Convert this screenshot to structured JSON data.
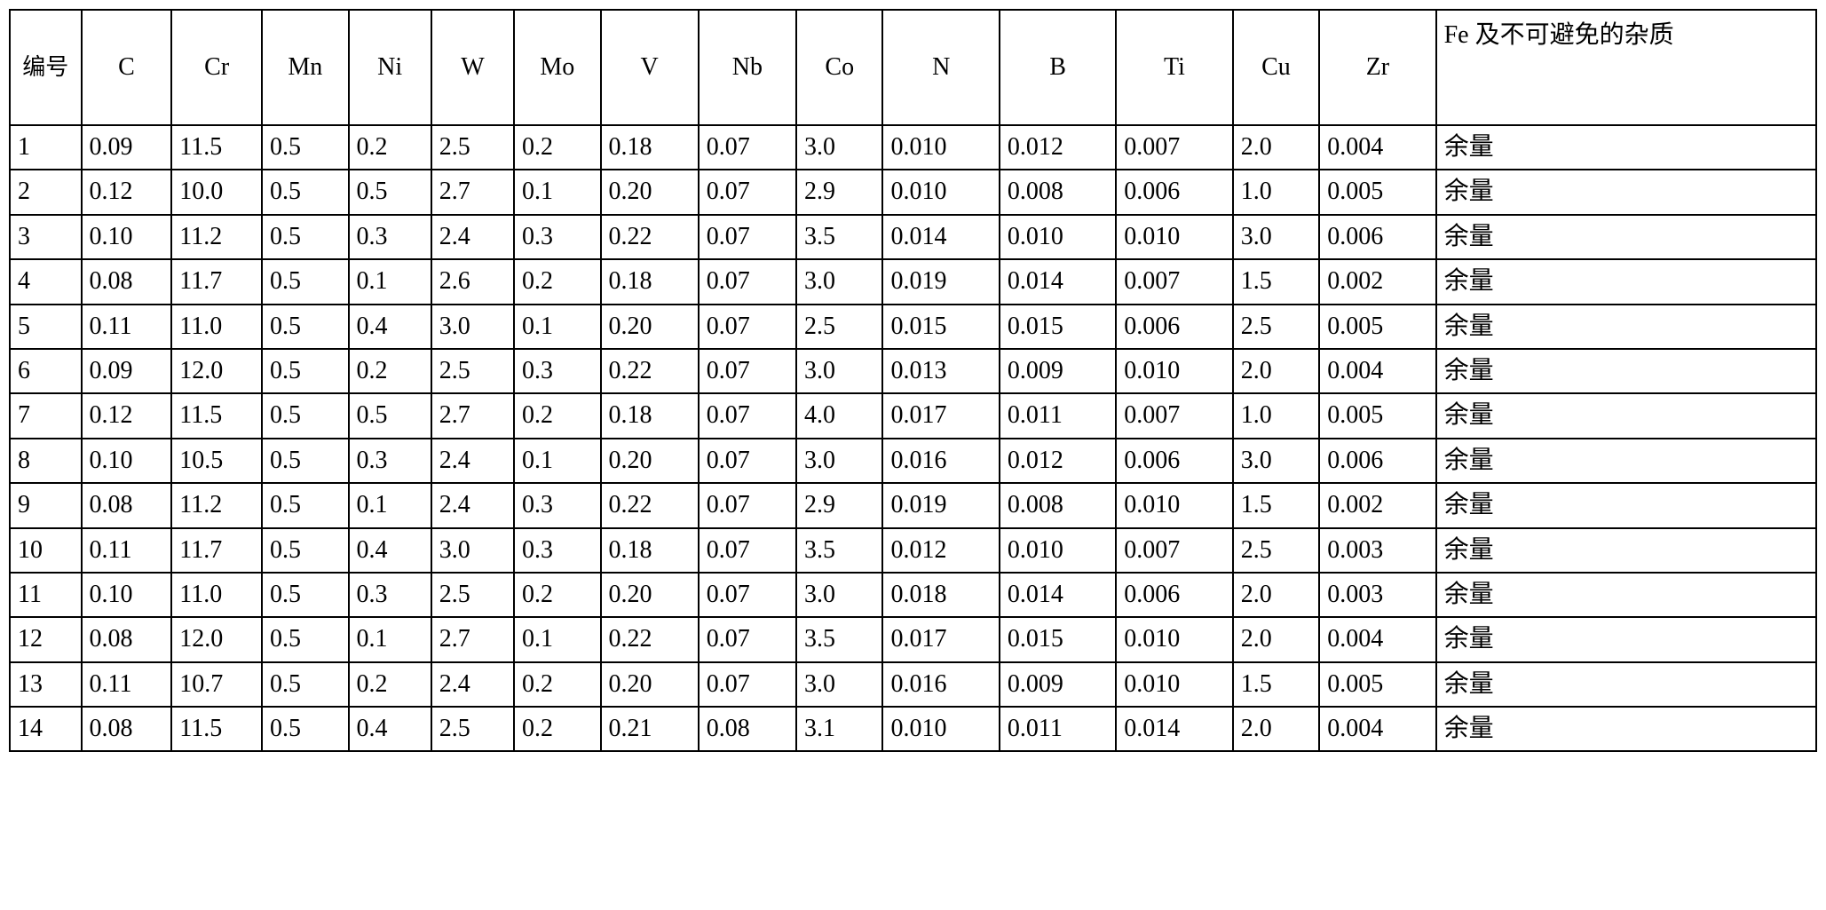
{
  "table": {
    "type": "table",
    "border_color": "#000000",
    "background_color": "#ffffff",
    "text_color": "#000000",
    "header_fontsize": 28,
    "cell_fontsize": 28,
    "font_family": "Times New Roman / SimSun",
    "columns": [
      {
        "key": "id",
        "label": "编号",
        "width_pct": 3.8,
        "align": "left"
      },
      {
        "key": "C",
        "label": "C",
        "width_pct": 4.8,
        "align": "left"
      },
      {
        "key": "Cr",
        "label": "Cr",
        "width_pct": 4.8,
        "align": "left"
      },
      {
        "key": "Mn",
        "label": "Mn",
        "width_pct": 4.6,
        "align": "left"
      },
      {
        "key": "Ni",
        "label": "Ni",
        "width_pct": 4.4,
        "align": "left"
      },
      {
        "key": "W",
        "label": "W",
        "width_pct": 4.4,
        "align": "left"
      },
      {
        "key": "Mo",
        "label": "Mo",
        "width_pct": 4.6,
        "align": "left"
      },
      {
        "key": "V",
        "label": "V",
        "width_pct": 5.2,
        "align": "left"
      },
      {
        "key": "Nb",
        "label": "Nb",
        "width_pct": 5.2,
        "align": "left"
      },
      {
        "key": "Co",
        "label": "Co",
        "width_pct": 4.6,
        "align": "left"
      },
      {
        "key": "N",
        "label": "N",
        "width_pct": 6.2,
        "align": "left"
      },
      {
        "key": "B",
        "label": "B",
        "width_pct": 6.2,
        "align": "left"
      },
      {
        "key": "Ti",
        "label": "Ti",
        "width_pct": 6.2,
        "align": "left"
      },
      {
        "key": "Cu",
        "label": "Cu",
        "width_pct": 4.6,
        "align": "left"
      },
      {
        "key": "Zr",
        "label": "Zr",
        "width_pct": 6.2,
        "align": "left"
      },
      {
        "key": "Fe",
        "label": "Fe 及不可避免的杂质",
        "width_pct": 20.2,
        "align": "left"
      }
    ],
    "rows": [
      [
        "1",
        "0.09",
        "11.5",
        "0.5",
        "0.2",
        "2.5",
        "0.2",
        "0.18",
        "0.07",
        "3.0",
        "0.010",
        "0.012",
        "0.007",
        "2.0",
        "0.004",
        "余量"
      ],
      [
        "2",
        "0.12",
        "10.0",
        "0.5",
        "0.5",
        "2.7",
        "0.1",
        "0.20",
        "0.07",
        "2.9",
        "0.010",
        "0.008",
        "0.006",
        "1.0",
        "0.005",
        "余量"
      ],
      [
        "3",
        "0.10",
        "11.2",
        "0.5",
        "0.3",
        "2.4",
        "0.3",
        "0.22",
        "0.07",
        "3.5",
        "0.014",
        "0.010",
        "0.010",
        "3.0",
        "0.006",
        "余量"
      ],
      [
        "4",
        "0.08",
        "11.7",
        "0.5",
        "0.1",
        "2.6",
        "0.2",
        "0.18",
        "0.07",
        "3.0",
        "0.019",
        "0.014",
        "0.007",
        "1.5",
        "0.002",
        "余量"
      ],
      [
        "5",
        "0.11",
        "11.0",
        "0.5",
        "0.4",
        "3.0",
        "0.1",
        "0.20",
        "0.07",
        "2.5",
        "0.015",
        "0.015",
        "0.006",
        "2.5",
        "0.005",
        "余量"
      ],
      [
        "6",
        "0.09",
        "12.0",
        "0.5",
        "0.2",
        "2.5",
        "0.3",
        "0.22",
        "0.07",
        "3.0",
        "0.013",
        "0.009",
        "0.010",
        "2.0",
        "0.004",
        "余量"
      ],
      [
        "7",
        "0.12",
        "11.5",
        "0.5",
        "0.5",
        "2.7",
        "0.2",
        "0.18",
        "0.07",
        "4.0",
        "0.017",
        "0.011",
        "0.007",
        "1.0",
        "0.005",
        "余量"
      ],
      [
        "8",
        "0.10",
        "10.5",
        "0.5",
        "0.3",
        "2.4",
        "0.1",
        "0.20",
        "0.07",
        "3.0",
        "0.016",
        "0.012",
        "0.006",
        "3.0",
        "0.006",
        "余量"
      ],
      [
        "9",
        "0.08",
        "11.2",
        "0.5",
        "0.1",
        "2.4",
        "0.3",
        "0.22",
        "0.07",
        "2.9",
        "0.019",
        "0.008",
        "0.010",
        "1.5",
        "0.002",
        "余量"
      ],
      [
        "10",
        "0.11",
        "11.7",
        "0.5",
        "0.4",
        "3.0",
        "0.3",
        "0.18",
        "0.07",
        "3.5",
        "0.012",
        "0.010",
        "0.007",
        "2.5",
        "0.003",
        "余量"
      ],
      [
        "11",
        "0.10",
        "11.0",
        "0.5",
        "0.3",
        "2.5",
        "0.2",
        "0.20",
        "0.07",
        "3.0",
        "0.018",
        "0.014",
        "0.006",
        "2.0",
        "0.003",
        "余量"
      ],
      [
        "12",
        "0.08",
        "12.0",
        "0.5",
        "0.1",
        "2.7",
        "0.1",
        "0.22",
        "0.07",
        "3.5",
        "0.017",
        "0.015",
        "0.010",
        "2.0",
        "0.004",
        "余量"
      ],
      [
        "13",
        "0.11",
        "10.7",
        "0.5",
        "0.2",
        "2.4",
        "0.2",
        "0.20",
        "0.07",
        "3.0",
        "0.016",
        "0.009",
        "0.010",
        "1.5",
        "0.005",
        "余量"
      ],
      [
        "14",
        "0.08",
        "11.5",
        "0.5",
        "0.4",
        "2.5",
        "0.2",
        "0.21",
        "0.08",
        "3.1",
        "0.010",
        "0.011",
        "0.014",
        "2.0",
        "0.004",
        "余量"
      ]
    ]
  }
}
